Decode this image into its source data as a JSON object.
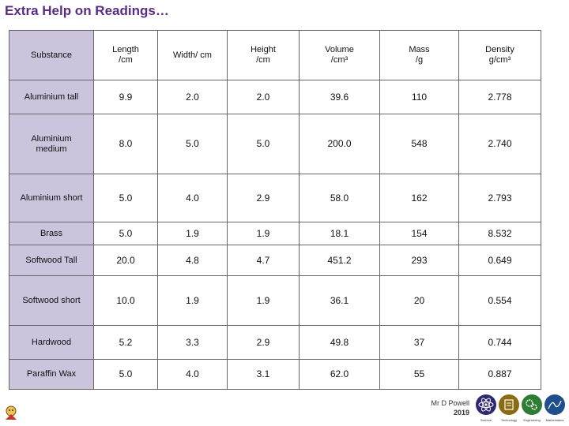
{
  "title": "Extra Help on Readings…",
  "table": {
    "headers": [
      [
        "Substance"
      ],
      [
        "Length",
        "/cm"
      ],
      [
        "Width/ cm"
      ],
      [
        "Height",
        "/cm"
      ],
      [
        "Volume",
        "/cm³"
      ],
      [
        "Mass",
        "/g"
      ],
      [
        "Density",
        "g/cm³"
      ]
    ],
    "rows": [
      {
        "substance": [
          "Aluminium tall"
        ],
        "length": "9.9",
        "width": "2.0",
        "height": "2.0",
        "volume": "39.6",
        "mass": "110",
        "density": "2.778"
      },
      {
        "substance": [
          "Aluminium",
          "medium"
        ],
        "length": "8.0",
        "width": "5.0",
        "height": "5.0",
        "volume": "200.0",
        "mass": "548",
        "density": "2.740"
      },
      {
        "substance": [
          "Aluminium short"
        ],
        "length": "5.0",
        "width": "4.0",
        "height": "2.9",
        "volume": "58.0",
        "mass": "162",
        "density": "2.793"
      },
      {
        "substance": [
          "Brass"
        ],
        "length": "5.0",
        "width": "1.9",
        "height": "1.9",
        "volume": "18.1",
        "mass": "154",
        "density": "8.532"
      },
      {
        "substance": [
          "Softwood Tall"
        ],
        "length": "20.0",
        "width": "4.8",
        "height": "4.7",
        "volume": "451.2",
        "mass": "293",
        "density": "0.649"
      },
      {
        "substance": [
          "Softwood short"
        ],
        "length": "10.0",
        "width": "1.9",
        "height": "1.9",
        "volume": "36.1",
        "mass": "20",
        "density": "0.554"
      },
      {
        "substance": [
          "Hardwood"
        ],
        "length": "5.2",
        "width": "3.3",
        "height": "2.9",
        "volume": "49.8",
        "mass": "37",
        "density": "0.744"
      },
      {
        "substance": [
          "Paraffin Wax"
        ],
        "length": "5.0",
        "width": "4.0",
        "height": "3.1",
        "volume": "62.0",
        "mass": "55",
        "density": "0.887"
      }
    ]
  },
  "footer": {
    "author": "Mr D Powell",
    "year": "2019"
  },
  "logos": [
    {
      "icon": "atom-icon",
      "label": "Science",
      "color": "#2d2a6e"
    },
    {
      "icon": "technology-icon",
      "label": "Technology",
      "color": "#8a6a12"
    },
    {
      "icon": "gears-icon",
      "label": "Engineering",
      "color": "#2e7d32"
    },
    {
      "icon": "maths-icon",
      "label": "Mathematics",
      "color": "#1f4e8c"
    }
  ],
  "colors": {
    "title": "#5b2c83",
    "substance_cell": "#ccc3dc",
    "grid": "#666666"
  }
}
